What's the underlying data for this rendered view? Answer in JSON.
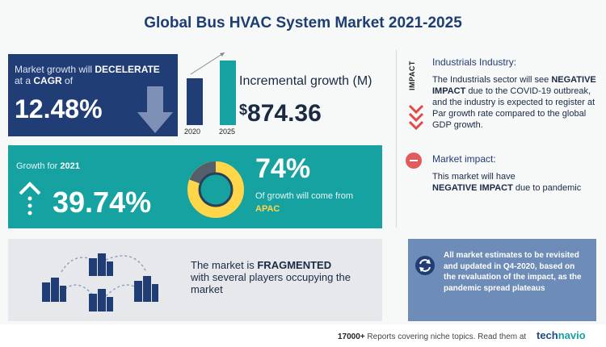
{
  "header": {
    "title": "Global Bus HVAC System Market  2021-2025"
  },
  "cagr_panel": {
    "line1_pre": "Market growth will ",
    "line1_strong": "DECELERATE",
    "line2_pre": "at a ",
    "line2_strong": "CAGR",
    "line2_post": " of",
    "value": "12.48%",
    "bg_color": "#213d75"
  },
  "incremental": {
    "year_start": "2020",
    "year_end": "2025",
    "label": "Incremental growth (M)",
    "currency": "$",
    "value": "874.36"
  },
  "growth_panel": {
    "label_pre": "Growth for ",
    "year": "2021",
    "value": "39.74%",
    "region_pct": "74%",
    "region_text": "Of growth will come from",
    "region": "APAC",
    "bg_color": "#17a2a2",
    "accent_color": "#ffd54a"
  },
  "fragment_panel": {
    "text_pre": "The market is ",
    "text_strong": "FRAGMENTED",
    "text_post": "with several players occupying the market"
  },
  "impact": {
    "tag": "IMPACT",
    "industry_heading": "Industrials Industry:",
    "industry_pre": "The Industrials sector will see ",
    "industry_strong": "NEGATIVE IMPACT",
    "industry_post": " due to the COVID-19 outbreak, and the industry is expected to register at Par growth rate compared to the global GDP growth.",
    "market_heading": "Market impact:",
    "market_pre": "This market will have ",
    "market_strong": "NEGATIVE IMPACT",
    "market_post": " due to pandemic"
  },
  "revisit_panel": {
    "text": "All market estimates to be revisited and updated in Q4-2020, based on the revaluation of the impact, as the pandemic spread plateaus",
    "bg_color": "#6d8db8"
  },
  "footer": {
    "count": "17000+",
    "text": " Reports covering niche topics. Read them at",
    "logo_a": "tech",
    "logo_b": "navio"
  }
}
